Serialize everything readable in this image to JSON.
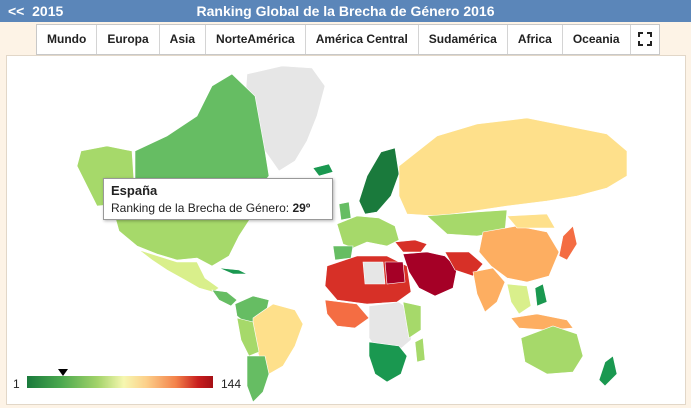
{
  "header": {
    "back_label": "<<",
    "year": "2015",
    "title": "Ranking Global de la Brecha de Género 2016"
  },
  "tabs": [
    "Mundo",
    "Europa",
    "Asia",
    "NorteAmérica",
    "América Central",
    "Sudamérica",
    "Africa",
    "Oceania"
  ],
  "fullscreen_icon": "expand-icon",
  "tooltip": {
    "country": "España",
    "label": "Ranking de la Brecha de Género:",
    "value": "29º"
  },
  "legend": {
    "min": "1",
    "max": "144",
    "marker_rank": 29
  },
  "colors": {
    "header": "#5b86b9",
    "best": "#1a7a3c",
    "worst": "#a50f15",
    "no_data": "#e6e6e6"
  }
}
